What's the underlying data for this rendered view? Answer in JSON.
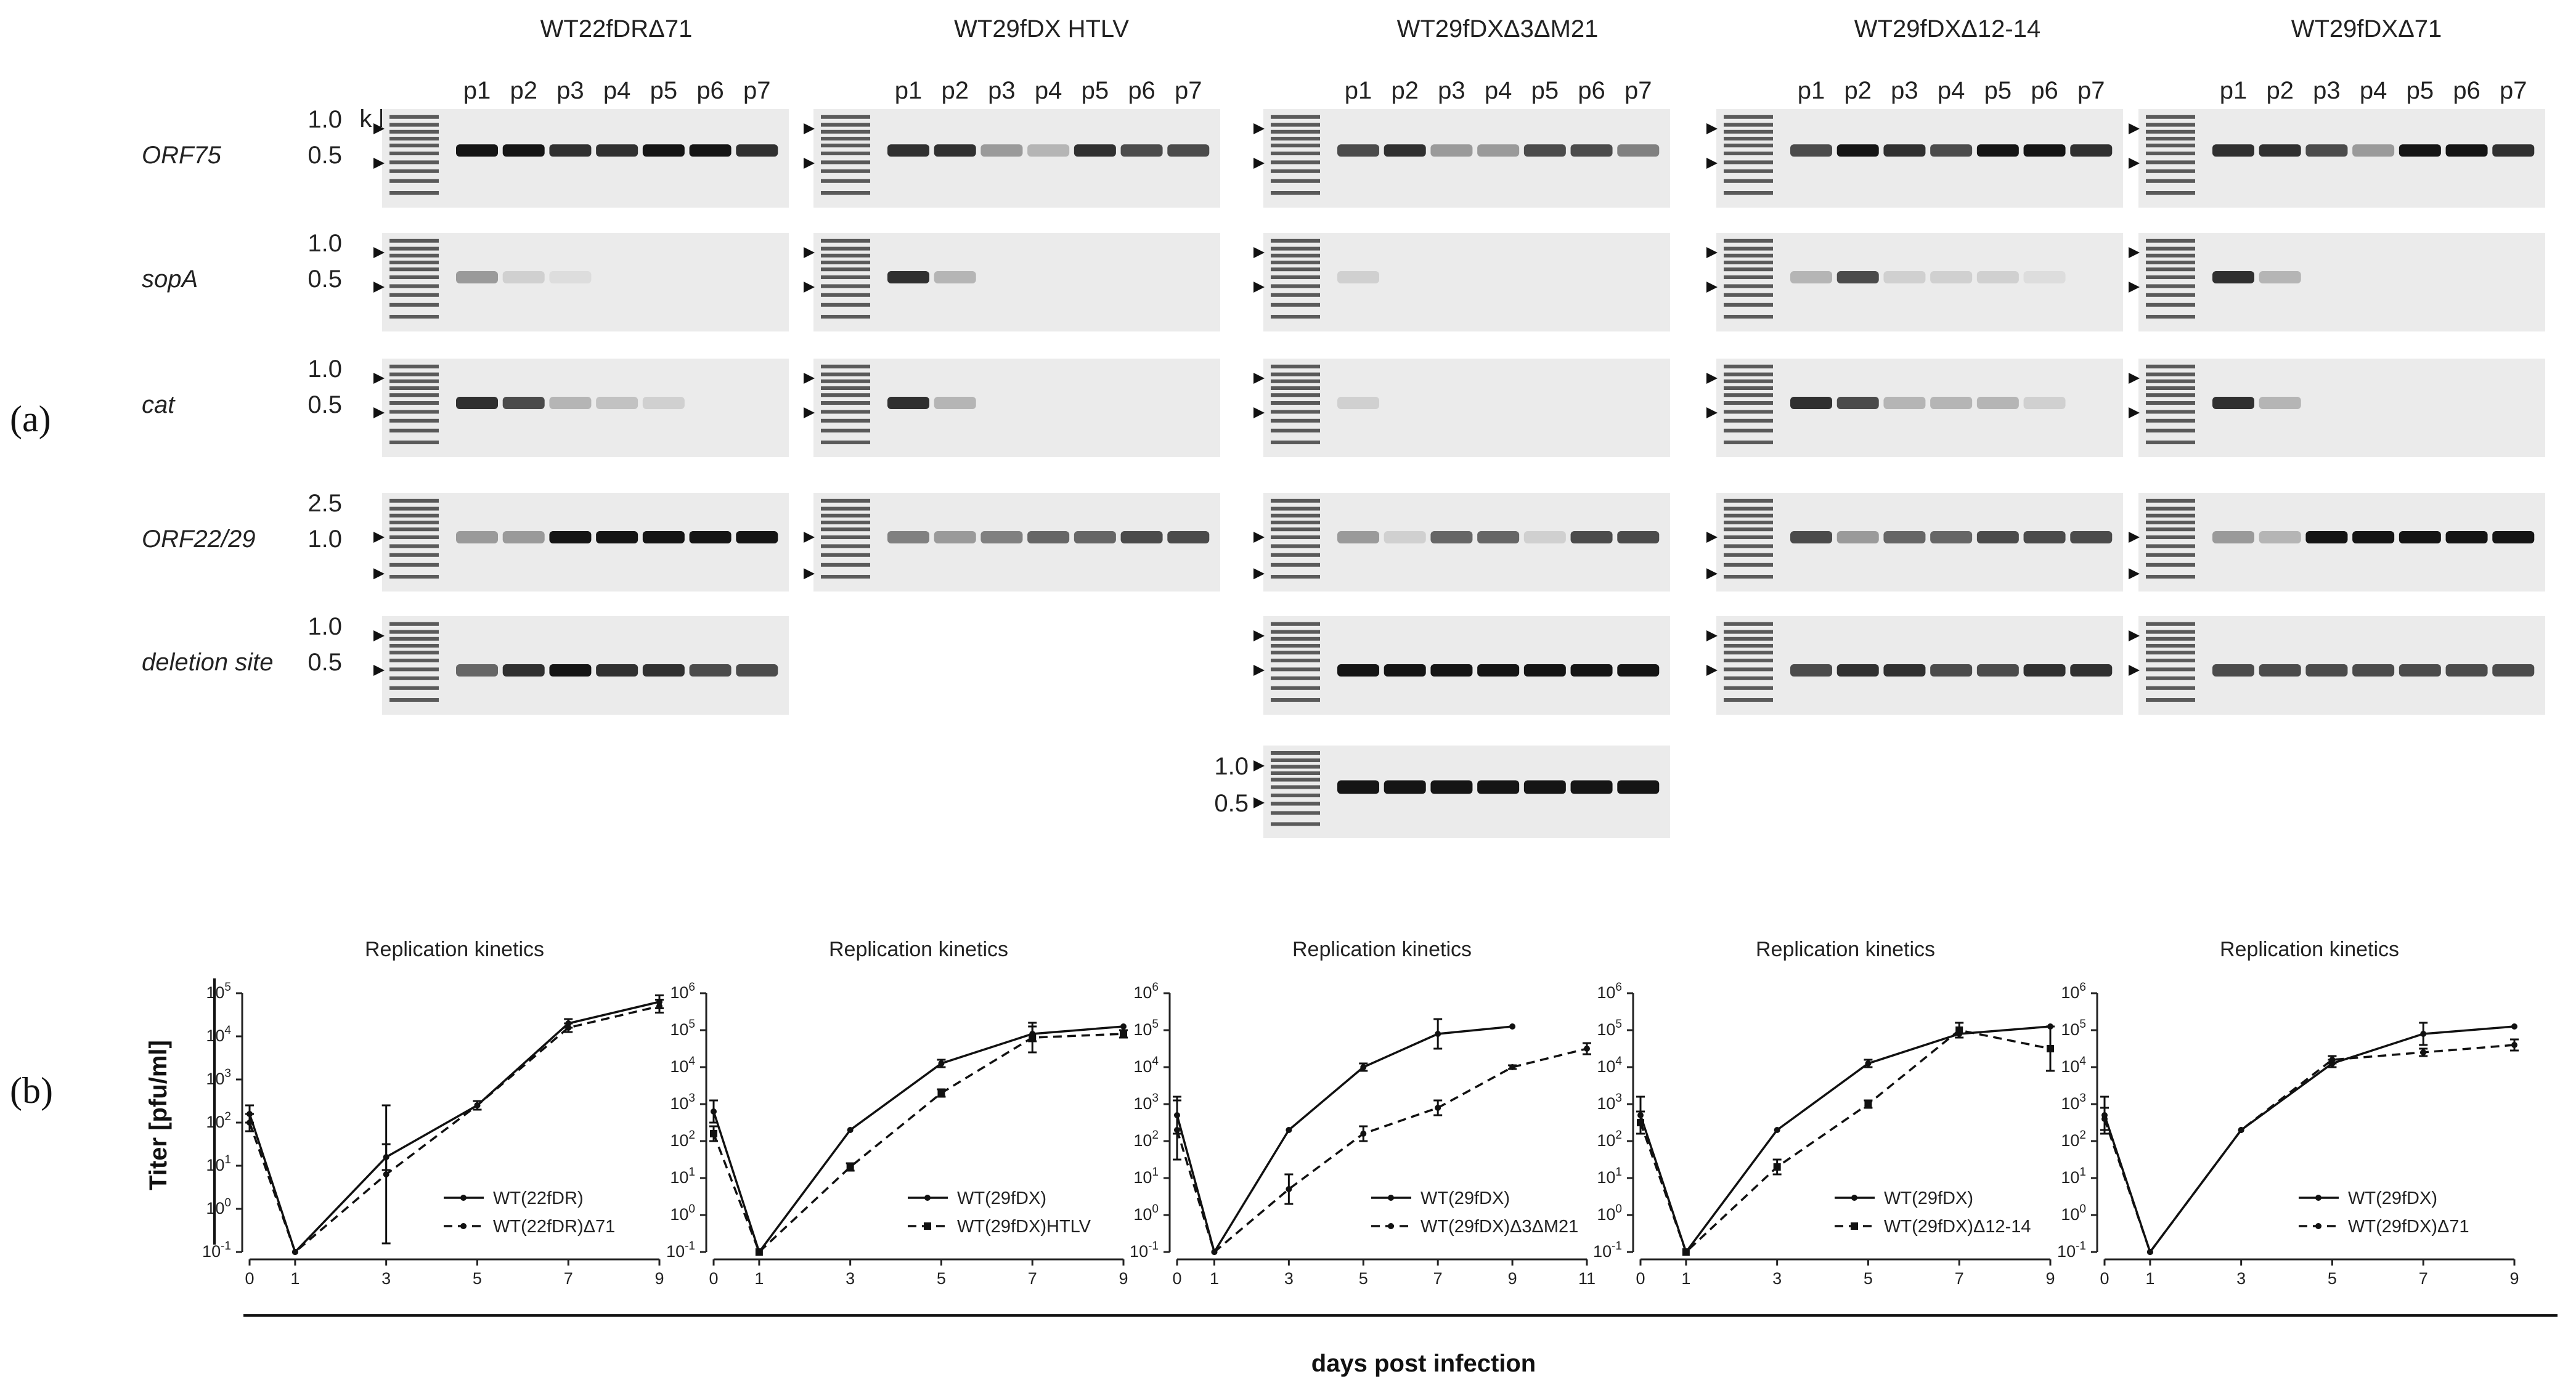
{
  "panel_labels": {
    "a": "(a)",
    "b": "(b)"
  },
  "gel": {
    "constructs": [
      "WT22fDRΔ71",
      "WT29fDX HTLV",
      "WT29fDXΔ3ΔM21",
      "WT29fDXΔ12-14",
      "WT29fDXΔ71"
    ],
    "lanes": [
      "p1",
      "p2",
      "p3",
      "p4",
      "p5",
      "p6",
      "p7"
    ],
    "kb_label": "k b",
    "rows": [
      {
        "name": "ORF75",
        "markers": [
          "1.0",
          "0.5"
        ]
      },
      {
        "name": "sopA",
        "markers": [
          "1.0",
          "0.5"
        ]
      },
      {
        "name": "cat",
        "markers": [
          "1.0",
          "0.5"
        ]
      },
      {
        "name": "ORF22/29",
        "markers": [
          "2.5",
          "1.0"
        ]
      },
      {
        "name": "deletion site",
        "markers": [
          "1.0",
          "0.5"
        ]
      }
    ],
    "extra_markers": [
      "1.0",
      "0.5"
    ]
  },
  "chart_data": [
    {
      "type": "line",
      "title": "Replication kinetics",
      "ylabel": "Titer [pfu/ml]",
      "xlabel": "days post infection",
      "yscale": "log10",
      "ylim_exp": [
        -1,
        5
      ],
      "x_ticks": [
        0,
        1,
        3,
        5,
        7,
        9
      ],
      "x": [
        0,
        1,
        3,
        5,
        7,
        9
      ],
      "legend": "bottom-right",
      "series": [
        {
          "name": "WT(22fDR)",
          "style": "solid",
          "marker": "dot",
          "log10_values": [
            2.2,
            -1,
            1.2,
            2.4,
            4.3,
            4.8
          ],
          "err": [
            0.2,
            0,
            0.3,
            0.1,
            0.1,
            0.15
          ]
        },
        {
          "name": "WT(22fDR)Δ71",
          "style": "dashed",
          "marker": "dot",
          "log10_values": [
            2.0,
            -1,
            0.8,
            2.4,
            4.2,
            4.7
          ],
          "err": [
            0.2,
            0,
            1.6,
            0.1,
            0.1,
            0.15
          ]
        }
      ]
    },
    {
      "type": "line",
      "title": "Replication kinetics",
      "yscale": "log10",
      "ylim_exp": [
        -1,
        6
      ],
      "x_ticks": [
        0,
        1,
        3,
        5,
        7,
        9
      ],
      "x": [
        0,
        1,
        3,
        5,
        7,
        9
      ],
      "legend": "bottom-right",
      "series": [
        {
          "name": "WT(29fDX)",
          "style": "solid",
          "marker": "dot",
          "log10_values": [
            2.8,
            -1,
            2.3,
            4.1,
            4.9,
            5.1
          ],
          "err": [
            0.3,
            0,
            0,
            0.1,
            0.2,
            0
          ]
        },
        {
          "name": "WT(29fDX)HTLV",
          "style": "dashed",
          "marker": "square",
          "log10_values": [
            2.2,
            -1,
            1.3,
            3.3,
            4.8,
            4.9
          ],
          "err": [
            0.2,
            0,
            0.1,
            0.1,
            0.4,
            0.1
          ]
        }
      ]
    },
    {
      "type": "line",
      "title": "Replication kinetics",
      "yscale": "log10",
      "ylim_exp": [
        -1,
        6
      ],
      "x_ticks": [
        0,
        1,
        3,
        5,
        7,
        9,
        11
      ],
      "x": [
        0,
        1,
        3,
        5,
        7,
        9,
        11
      ],
      "legend": "bottom-right",
      "series": [
        {
          "name": "WT(29fDX)",
          "style": "solid",
          "marker": "dot",
          "log10_values": [
            2.7,
            -1,
            2.3,
            4.0,
            4.9,
            5.1,
            null
          ],
          "err": [
            0.5,
            0,
            0,
            0.1,
            0.4,
            0,
            0
          ]
        },
        {
          "name": "WT(29fDX)Δ3ΔM21",
          "style": "dashed",
          "marker": "dot",
          "log10_values": [
            2.3,
            -1,
            0.7,
            2.2,
            2.9,
            4.0,
            4.5
          ],
          "err": [
            0.8,
            0,
            0.4,
            0.2,
            0.2,
            0.05,
            0.15
          ]
        }
      ]
    },
    {
      "type": "line",
      "title": "Replication kinetics",
      "yscale": "log10",
      "ylim_exp": [
        -1,
        6
      ],
      "x_ticks": [
        0,
        1,
        3,
        5,
        7,
        9
      ],
      "x": [
        0,
        1,
        3,
        5,
        7,
        9
      ],
      "legend": "bottom-right",
      "series": [
        {
          "name": "WT(29fDX)",
          "style": "solid",
          "marker": "dot",
          "log10_values": [
            2.7,
            -1,
            2.3,
            4.1,
            4.9,
            5.1
          ],
          "err": [
            0.5,
            0,
            0,
            0.1,
            0,
            0
          ]
        },
        {
          "name": "WT(29fDX)Δ12-14",
          "style": "dashed",
          "marker": "square",
          "log10_values": [
            2.5,
            -1,
            1.3,
            3.0,
            5.0,
            4.5
          ],
          "err": [
            0.3,
            0,
            0.2,
            0.1,
            0.2,
            0.6
          ]
        }
      ]
    },
    {
      "type": "line",
      "title": "Replication kinetics",
      "yscale": "log10",
      "ylim_exp": [
        -1,
        6
      ],
      "x_ticks": [
        0,
        1,
        3,
        5,
        7,
        9
      ],
      "x": [
        0,
        1,
        3,
        5,
        7,
        9
      ],
      "legend": "bottom-right",
      "series": [
        {
          "name": "WT(29fDX)",
          "style": "solid",
          "marker": "dot",
          "log10_values": [
            2.7,
            -1,
            2.3,
            4.1,
            4.9,
            5.1
          ],
          "err": [
            0.5,
            0,
            0,
            0.1,
            0.3,
            0
          ]
        },
        {
          "name": "WT(29fDX)Δ71",
          "style": "dashed",
          "marker": "dot",
          "log10_values": [
            2.6,
            -1,
            2.3,
            4.2,
            4.4,
            4.6
          ],
          "err": [
            0.3,
            0,
            0,
            0.1,
            0.1,
            0.15
          ]
        }
      ]
    }
  ]
}
